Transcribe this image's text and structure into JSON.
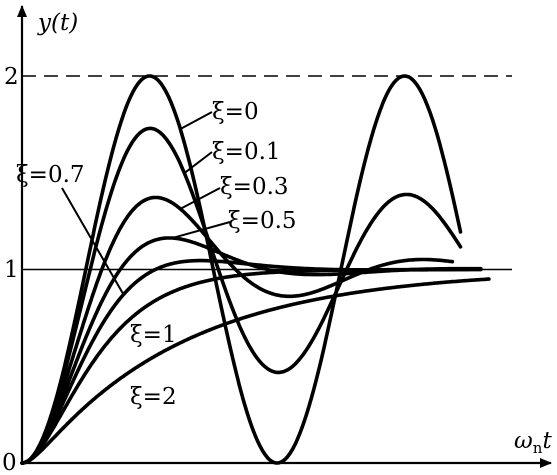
{
  "chart_data": {
    "type": "line",
    "title": "",
    "xlabel": "ωnt",
    "ylabel": "y(t)",
    "origin_label": "0",
    "yticks": [
      "1",
      "2"
    ],
    "reference_lines": [
      {
        "y": 1,
        "style": "solid"
      },
      {
        "y": 2,
        "style": "dashed"
      }
    ],
    "xlim": [
      0,
      11.7
    ],
    "ylim": [
      0,
      2.35
    ],
    "grid": false,
    "legend": "none (curve labels with leader lines)",
    "series": [
      {
        "name": "ξ=0",
        "zeta": 0,
        "x_max": 10.8
      },
      {
        "name": "ξ=0.1",
        "zeta": 0.1,
        "x_max": 10.8
      },
      {
        "name": "ξ=0.3",
        "zeta": 0.3,
        "x_max": 10.6
      },
      {
        "name": "ξ=0.5",
        "zeta": 0.5,
        "x_max": 11.3
      },
      {
        "name": "ξ=0.7",
        "zeta": 0.7,
        "x_max": 11.3
      },
      {
        "name": "ξ=1",
        "zeta": 1,
        "x_max": 11.0
      },
      {
        "name": "ξ=2",
        "zeta": 2,
        "x_max": 11.5
      }
    ]
  }
}
